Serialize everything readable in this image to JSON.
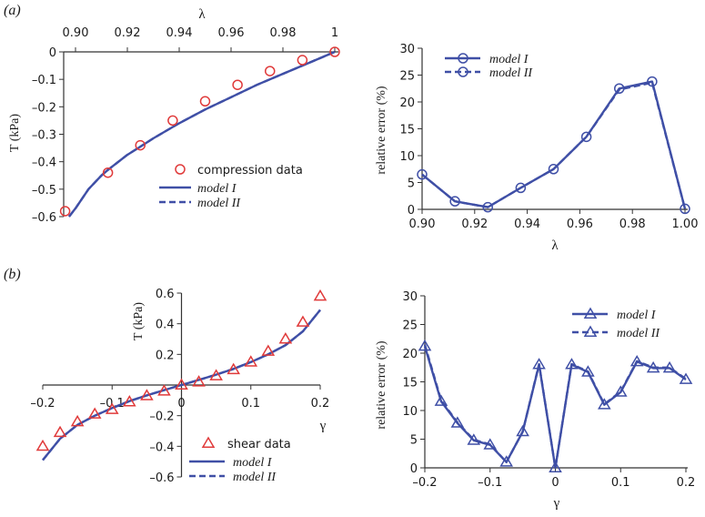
{
  "panel_labels": {
    "a": "(a)",
    "b": "(b)"
  },
  "colors": {
    "model": "#3f4fa6",
    "data": "#e03a3a",
    "axis": "#333333",
    "text": "#1a1a1a"
  },
  "chart_data": [
    {
      "id": "a-left",
      "type": "line",
      "xlabel": "λ",
      "ylabel": "T (kPa)",
      "xlim": [
        0.895,
        1.0
      ],
      "ylim": [
        -0.6,
        0.0
      ],
      "xticks": [
        0.9,
        0.92,
        0.94,
        0.96,
        0.98,
        1
      ],
      "xtick_labels": [
        "0.90",
        "0.92",
        "0.94",
        "0.96",
        "0.98",
        "1"
      ],
      "yticks": [
        0,
        -0.1,
        -0.2,
        -0.3,
        -0.4,
        -0.5,
        -0.6
      ],
      "ytick_labels": [
        "0",
        "–0.1",
        "–0.2",
        "–0.3",
        "–0.4",
        "–0.5",
        "–0.6"
      ],
      "legend_position": "lower-right",
      "series": [
        {
          "name": "compression data",
          "kind": "scatter",
          "marker": "circle",
          "x": [
            0.896,
            0.9125,
            0.925,
            0.9375,
            0.95,
            0.9625,
            0.975,
            0.9875,
            1.0
          ],
          "y": [
            -0.58,
            -0.44,
            -0.34,
            -0.25,
            -0.18,
            -0.12,
            -0.07,
            -0.03,
            0.0
          ]
        },
        {
          "name": "model I",
          "kind": "line",
          "dash": false,
          "x": [
            0.8975,
            0.9,
            0.905,
            0.91,
            0.9125,
            0.92,
            0.925,
            0.93,
            0.94,
            0.95,
            0.96,
            0.97,
            0.98,
            0.99,
            1.0
          ],
          "y": [
            -0.6,
            -0.57,
            -0.5,
            -0.45,
            -0.43,
            -0.375,
            -0.345,
            -0.315,
            -0.26,
            -0.21,
            -0.165,
            -0.12,
            -0.08,
            -0.04,
            0.0
          ]
        },
        {
          "name": "model II",
          "kind": "line",
          "dash": true,
          "x": [
            0.8975,
            0.9,
            0.905,
            0.91,
            0.9125,
            0.92,
            0.925,
            0.93,
            0.94,
            0.95,
            0.96,
            0.97,
            0.98,
            0.99,
            1.0
          ],
          "y": [
            -0.6,
            -0.57,
            -0.5,
            -0.45,
            -0.43,
            -0.375,
            -0.345,
            -0.315,
            -0.26,
            -0.21,
            -0.165,
            -0.12,
            -0.08,
            -0.04,
            0.0
          ]
        }
      ]
    },
    {
      "id": "a-right",
      "type": "line",
      "xlabel": "λ",
      "ylabel": "relative error (%)",
      "xlim": [
        0.9,
        1.0
      ],
      "ylim": [
        0,
        30
      ],
      "xticks": [
        0.9,
        0.92,
        0.94,
        0.96,
        0.98,
        1.0
      ],
      "xtick_labels": [
        "0.90",
        "0.92",
        "0.94",
        "0.96",
        "0.98",
        "1.00"
      ],
      "yticks": [
        0,
        5,
        10,
        15,
        20,
        25,
        30
      ],
      "ytick_labels": [
        "0",
        "5",
        "10",
        "15",
        "20",
        "25",
        "30"
      ],
      "legend_position": "top-left",
      "series": [
        {
          "name": "model I",
          "marker": "circle",
          "dash": false,
          "x": [
            0.9,
            0.9125,
            0.925,
            0.9375,
            0.95,
            0.9625,
            0.975,
            0.9875,
            1.0
          ],
          "y": [
            6.5,
            1.5,
            0.4,
            4.0,
            7.5,
            13.5,
            22.5,
            23.8,
            0.1
          ]
        },
        {
          "name": "model II",
          "marker": "circle",
          "dash": true,
          "x": [
            0.9,
            0.9125,
            0.925,
            0.9375,
            0.95,
            0.9625,
            0.975,
            0.9875,
            1.0
          ],
          "y": [
            6.5,
            1.5,
            0.4,
            4.0,
            7.5,
            13.5,
            22.3,
            23.6,
            0.1
          ]
        }
      ]
    },
    {
      "id": "b-left",
      "type": "line",
      "xlabel": "γ",
      "ylabel": "T (kPa)",
      "xlim": [
        -0.2,
        0.2
      ],
      "ylim": [
        -0.6,
        0.6
      ],
      "xticks": [
        -0.2,
        -0.1,
        0,
        0.1,
        0.2
      ],
      "xtick_labels": [
        "–0.2",
        "–0.1",
        "0",
        "0.1",
        "0.2"
      ],
      "yticks": [
        0.6,
        0.4,
        0.2,
        -0.2,
        -0.4,
        -0.6
      ],
      "ytick_labels": [
        "0.6",
        "0.4",
        "0.2",
        "–0.2",
        "–0.4",
        "–0.6"
      ],
      "legend_position": "lower-right",
      "series": [
        {
          "name": "shear data",
          "kind": "scatter",
          "marker": "triangle",
          "x": [
            -0.2,
            -0.175,
            -0.15,
            -0.125,
            -0.1,
            -0.075,
            -0.05,
            -0.025,
            0,
            0.025,
            0.05,
            0.075,
            0.1,
            0.125,
            0.15,
            0.175,
            0.2
          ],
          "y": [
            -0.4,
            -0.31,
            -0.24,
            -0.19,
            -0.16,
            -0.11,
            -0.07,
            -0.04,
            0.0,
            0.02,
            0.06,
            0.1,
            0.15,
            0.22,
            0.3,
            0.41,
            0.58
          ]
        },
        {
          "name": "model I",
          "kind": "line",
          "dash": false,
          "x": [
            -0.2,
            -0.175,
            -0.15,
            -0.125,
            -0.1,
            -0.075,
            -0.05,
            -0.025,
            0,
            0.025,
            0.05,
            0.075,
            0.1,
            0.125,
            0.15,
            0.175,
            0.2
          ],
          "y": [
            -0.49,
            -0.35,
            -0.26,
            -0.2,
            -0.15,
            -0.105,
            -0.068,
            -0.033,
            0.0,
            0.033,
            0.068,
            0.105,
            0.15,
            0.2,
            0.26,
            0.35,
            0.49
          ]
        },
        {
          "name": "model II",
          "kind": "line",
          "dash": true,
          "x": [
            -0.2,
            -0.175,
            -0.15,
            -0.125,
            -0.1,
            -0.075,
            -0.05,
            -0.025,
            0,
            0.025,
            0.05,
            0.075,
            0.1,
            0.125,
            0.15,
            0.175,
            0.2
          ],
          "y": [
            -0.49,
            -0.35,
            -0.26,
            -0.2,
            -0.15,
            -0.105,
            -0.068,
            -0.033,
            0.0,
            0.033,
            0.068,
            0.105,
            0.15,
            0.2,
            0.26,
            0.35,
            0.49
          ]
        }
      ]
    },
    {
      "id": "b-right",
      "type": "line",
      "xlabel": "γ",
      "ylabel": "relative error (%)",
      "xlim": [
        -0.2,
        0.2
      ],
      "ylim": [
        0,
        30
      ],
      "xticks": [
        -0.2,
        -0.1,
        0,
        0.1,
        0.2
      ],
      "xtick_labels": [
        "–0.2",
        "–0.1",
        "0",
        "0.1",
        "0.2"
      ],
      "yticks": [
        0,
        5,
        10,
        15,
        20,
        25,
        30
      ],
      "ytick_labels": [
        "0",
        "5",
        "10",
        "15",
        "20",
        "25",
        "30"
      ],
      "legend_position": "top-right",
      "series": [
        {
          "name": "model I",
          "marker": "triangle",
          "dash": false,
          "x": [
            -0.2,
            -0.175,
            -0.15,
            -0.125,
            -0.1,
            -0.075,
            -0.05,
            -0.025,
            0,
            0.025,
            0.05,
            0.075,
            0.1,
            0.125,
            0.15,
            0.175,
            0.2
          ],
          "y": [
            21.2,
            11.6,
            7.8,
            4.8,
            4.0,
            1.0,
            6.3,
            18.0,
            0,
            18.0,
            16.7,
            11.0,
            13.2,
            18.5,
            17.4,
            17.4,
            15.4
          ]
        },
        {
          "name": "model II",
          "marker": "triangle",
          "dash": true,
          "x": [
            -0.2,
            -0.175,
            -0.15,
            -0.125,
            -0.1,
            -0.075,
            -0.05,
            -0.025,
            0,
            0.025,
            0.05,
            0.075,
            0.1,
            0.125,
            0.15,
            0.175,
            0.2
          ],
          "y": [
            21.5,
            11.8,
            7.9,
            4.9,
            4.1,
            1.0,
            6.3,
            18.1,
            0,
            18.1,
            16.8,
            11.1,
            13.3,
            18.6,
            17.5,
            17.5,
            15.5
          ]
        }
      ]
    }
  ]
}
